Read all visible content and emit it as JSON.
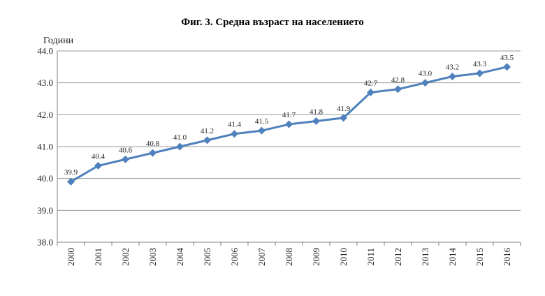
{
  "chart_data": {
    "type": "line",
    "title": "Фиг. 3. Средна възраст на населението",
    "ylabel": "Години",
    "xlabel": "",
    "categories": [
      "2000",
      "2001",
      "2002",
      "2003",
      "2004",
      "2005",
      "2006",
      "2007",
      "2008",
      "2009",
      "2010",
      "2011",
      "2012",
      "2013",
      "2014",
      "2015",
      "2016"
    ],
    "series": [
      {
        "values": [
          39.9,
          40.4,
          40.6,
          40.8,
          41.0,
          41.2,
          41.4,
          41.5,
          41.7,
          41.8,
          41.9,
          42.7,
          42.8,
          43.0,
          43.2,
          43.3,
          43.5
        ],
        "data_labels": [
          "39.9",
          "40.4",
          "40.6",
          "40.8",
          "41.0",
          "41.2",
          "41.4",
          "41.5",
          "41.7",
          "41.8",
          "41.9",
          "42.7",
          "42.8",
          "43.0",
          "43.2",
          "43.3",
          "43.5"
        ]
      }
    ],
    "ylim": [
      38.0,
      44.0
    ],
    "yticks": [
      "38.0",
      "39.0",
      "40.0",
      "41.0",
      "42.0",
      "43.0",
      "44.0"
    ],
    "grid": true,
    "legend": "none",
    "colors": {
      "series": "#4f81bd",
      "grid": "#9a9a9a",
      "axis": "#808080"
    }
  }
}
